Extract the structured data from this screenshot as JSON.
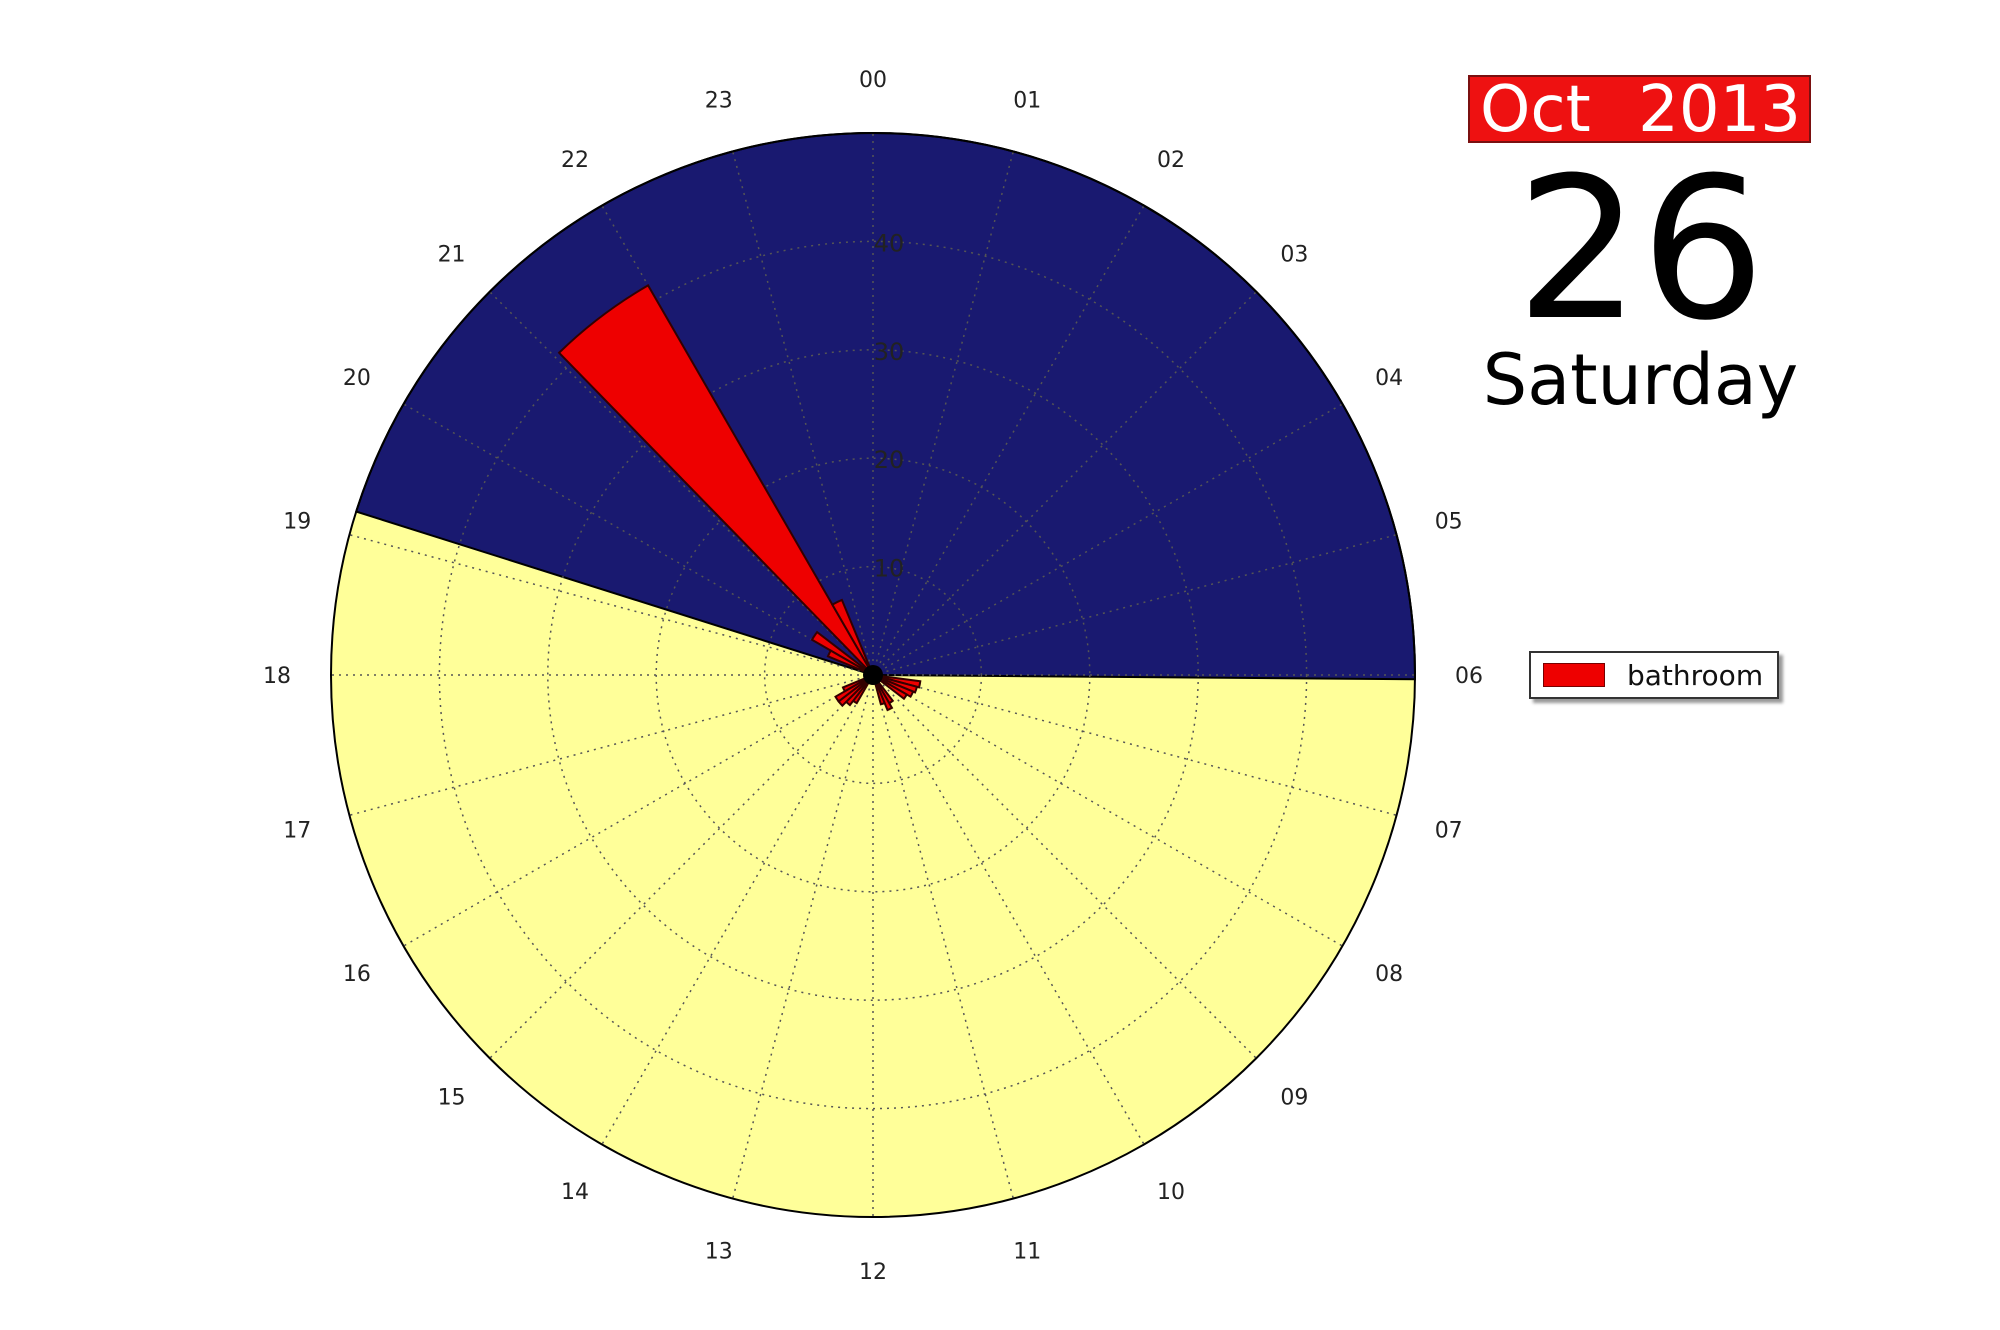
{
  "header": {
    "month": "Oct",
    "year": "2013",
    "day": "26",
    "weekday": "Saturday"
  },
  "chart_data": {
    "type": "polar-bar",
    "angular_axis": {
      "unit": "hour",
      "direction": "clockwise",
      "zero": "top",
      "tick_labels": [
        "00",
        "01",
        "02",
        "03",
        "04",
        "05",
        "06",
        "07",
        "08",
        "09",
        "10",
        "11",
        "12",
        "13",
        "14",
        "15",
        "16",
        "17",
        "18",
        "19",
        "20",
        "21",
        "22",
        "23"
      ]
    },
    "radial_axis": {
      "range": [
        0,
        50
      ],
      "tick_labels": [
        "10",
        "20",
        "30",
        "40"
      ],
      "ticks": [
        10,
        20,
        30,
        40
      ],
      "grid": true
    },
    "background": {
      "night": {
        "start_hour": 19.17,
        "end_hour": 6.03,
        "color": "#191970"
      },
      "day": {
        "color": "#ffff99"
      }
    },
    "legend": {
      "position": "right",
      "entries": [
        "bathroom"
      ]
    },
    "series": [
      {
        "name": "bathroom",
        "color": "#ee0000",
        "bars": [
          {
            "start": 21.05,
            "end": 22.0,
            "value": 41.5
          },
          {
            "start": 22.0,
            "end": 22.5,
            "value": 7.5
          },
          {
            "start": 20.0,
            "end": 20.5,
            "value": 6.5
          },
          {
            "start": 19.5,
            "end": 20.0,
            "value": 4.5
          },
          {
            "start": 6.5,
            "end": 7.0,
            "value": 4.4
          },
          {
            "start": 7.0,
            "end": 7.5,
            "value": 4.2
          },
          {
            "start": 7.5,
            "end": 8.0,
            "value": 4.0
          },
          {
            "start": 8.0,
            "end": 8.5,
            "value": 3.6
          },
          {
            "start": 9.5,
            "end": 10.0,
            "value": 3.0
          },
          {
            "start": 10.0,
            "end": 10.5,
            "value": 3.5
          },
          {
            "start": 10.5,
            "end": 11.0,
            "value": 2.8
          },
          {
            "start": 14.0,
            "end": 14.5,
            "value": 3.0
          },
          {
            "start": 14.5,
            "end": 15.0,
            "value": 3.5
          },
          {
            "start": 15.0,
            "end": 15.5,
            "value": 4.0
          },
          {
            "start": 15.5,
            "end": 16.0,
            "value": 4.0
          },
          {
            "start": 16.0,
            "end": 16.5,
            "value": 3.0
          }
        ]
      }
    ]
  }
}
